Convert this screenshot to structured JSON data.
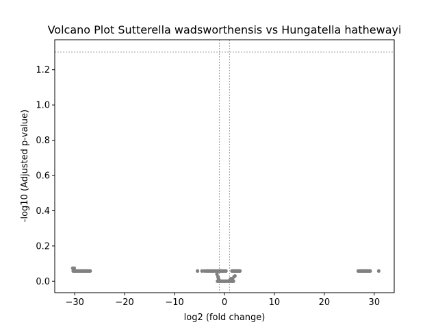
{
  "chart_data": {
    "type": "scatter",
    "title": "Volcano Plot Sutterella wadsworthensis vs Hungatella hathewayi",
    "xlabel": "log2 (fold change)",
    "ylabel": "-log10 (Adjusted p-value)",
    "xlim": [
      -34,
      34
    ],
    "ylim": [
      -0.065,
      1.37
    ],
    "xticks": [
      -30,
      -20,
      -10,
      0,
      10,
      20,
      30
    ],
    "xtick_labels": [
      "−30",
      "−20",
      "−10",
      "0",
      "10",
      "20",
      "30"
    ],
    "yticks": [
      0.0,
      0.2,
      0.4,
      0.6,
      0.8,
      1.0,
      1.2
    ],
    "ytick_labels": [
      "0.0",
      "0.2",
      "0.4",
      "0.6",
      "0.8",
      "1.0",
      "1.2"
    ],
    "threshold_lines": {
      "horizontal": [
        1.3
      ],
      "vertical": [
        -1,
        1
      ]
    },
    "grid": false,
    "legend": "none",
    "point_color": "#808080",
    "threshold_color": "#808080",
    "series": [
      {
        "x": [
          -30.3,
          -30.1,
          -29.9,
          -29.7,
          -29.5,
          -29.3,
          -29.1,
          -28.9,
          -28.7,
          -28.5,
          -28.3,
          -28.1,
          -27.9,
          -27.7,
          -27.5,
          -27.3,
          -27.1,
          -26.9,
          -30.4,
          -30.1,
          -5.4,
          -4.5,
          -4.0,
          -3.6,
          -3.3,
          -3.0,
          -2.7,
          -2.4,
          -2.1,
          -1.8,
          -1.5,
          -1.3,
          -1.1,
          -0.9,
          -0.7,
          -0.5,
          -0.3,
          0.0,
          0.3,
          1.5,
          1.7,
          1.9,
          2.1,
          2.3,
          2.5,
          2.7,
          2.9,
          3.1,
          -1.4,
          -1.2,
          -1.0,
          -0.8,
          -0.6,
          -0.4,
          -0.2,
          0.0,
          0.2,
          0.4,
          0.6,
          0.8,
          1.0,
          1.2,
          1.4,
          1.6,
          1.8,
          -1.5,
          -1.3,
          -1.2,
          -1.1,
          1.1,
          1.3,
          1.6,
          1.9,
          2.1,
          26.8,
          27.0,
          27.2,
          27.4,
          27.6,
          27.8,
          28.0,
          28.2,
          28.4,
          28.6,
          28.8,
          29.0,
          29.2,
          30.9
        ],
        "y": [
          0.058,
          0.058,
          0.058,
          0.058,
          0.058,
          0.058,
          0.058,
          0.058,
          0.058,
          0.058,
          0.058,
          0.058,
          0.058,
          0.058,
          0.058,
          0.058,
          0.058,
          0.058,
          0.074,
          0.074,
          0.058,
          0.058,
          0.058,
          0.058,
          0.058,
          0.058,
          0.058,
          0.058,
          0.058,
          0.058,
          0.058,
          0.058,
          0.058,
          0.058,
          0.058,
          0.058,
          0.058,
          0.058,
          0.058,
          0.058,
          0.058,
          0.058,
          0.058,
          0.058,
          0.058,
          0.058,
          0.058,
          0.058,
          0.0,
          0.0,
          0.0,
          0.0,
          0.0,
          0.0,
          0.0,
          0.0,
          0.0,
          0.0,
          0.0,
          0.0,
          0.0,
          0.0,
          0.0,
          0.0,
          0.0,
          0.04,
          0.025,
          0.015,
          0.008,
          0.008,
          0.015,
          0.01,
          0.025,
          0.03,
          0.058,
          0.058,
          0.058,
          0.058,
          0.058,
          0.058,
          0.058,
          0.058,
          0.058,
          0.058,
          0.058,
          0.058,
          0.058,
          0.058
        ]
      }
    ]
  }
}
